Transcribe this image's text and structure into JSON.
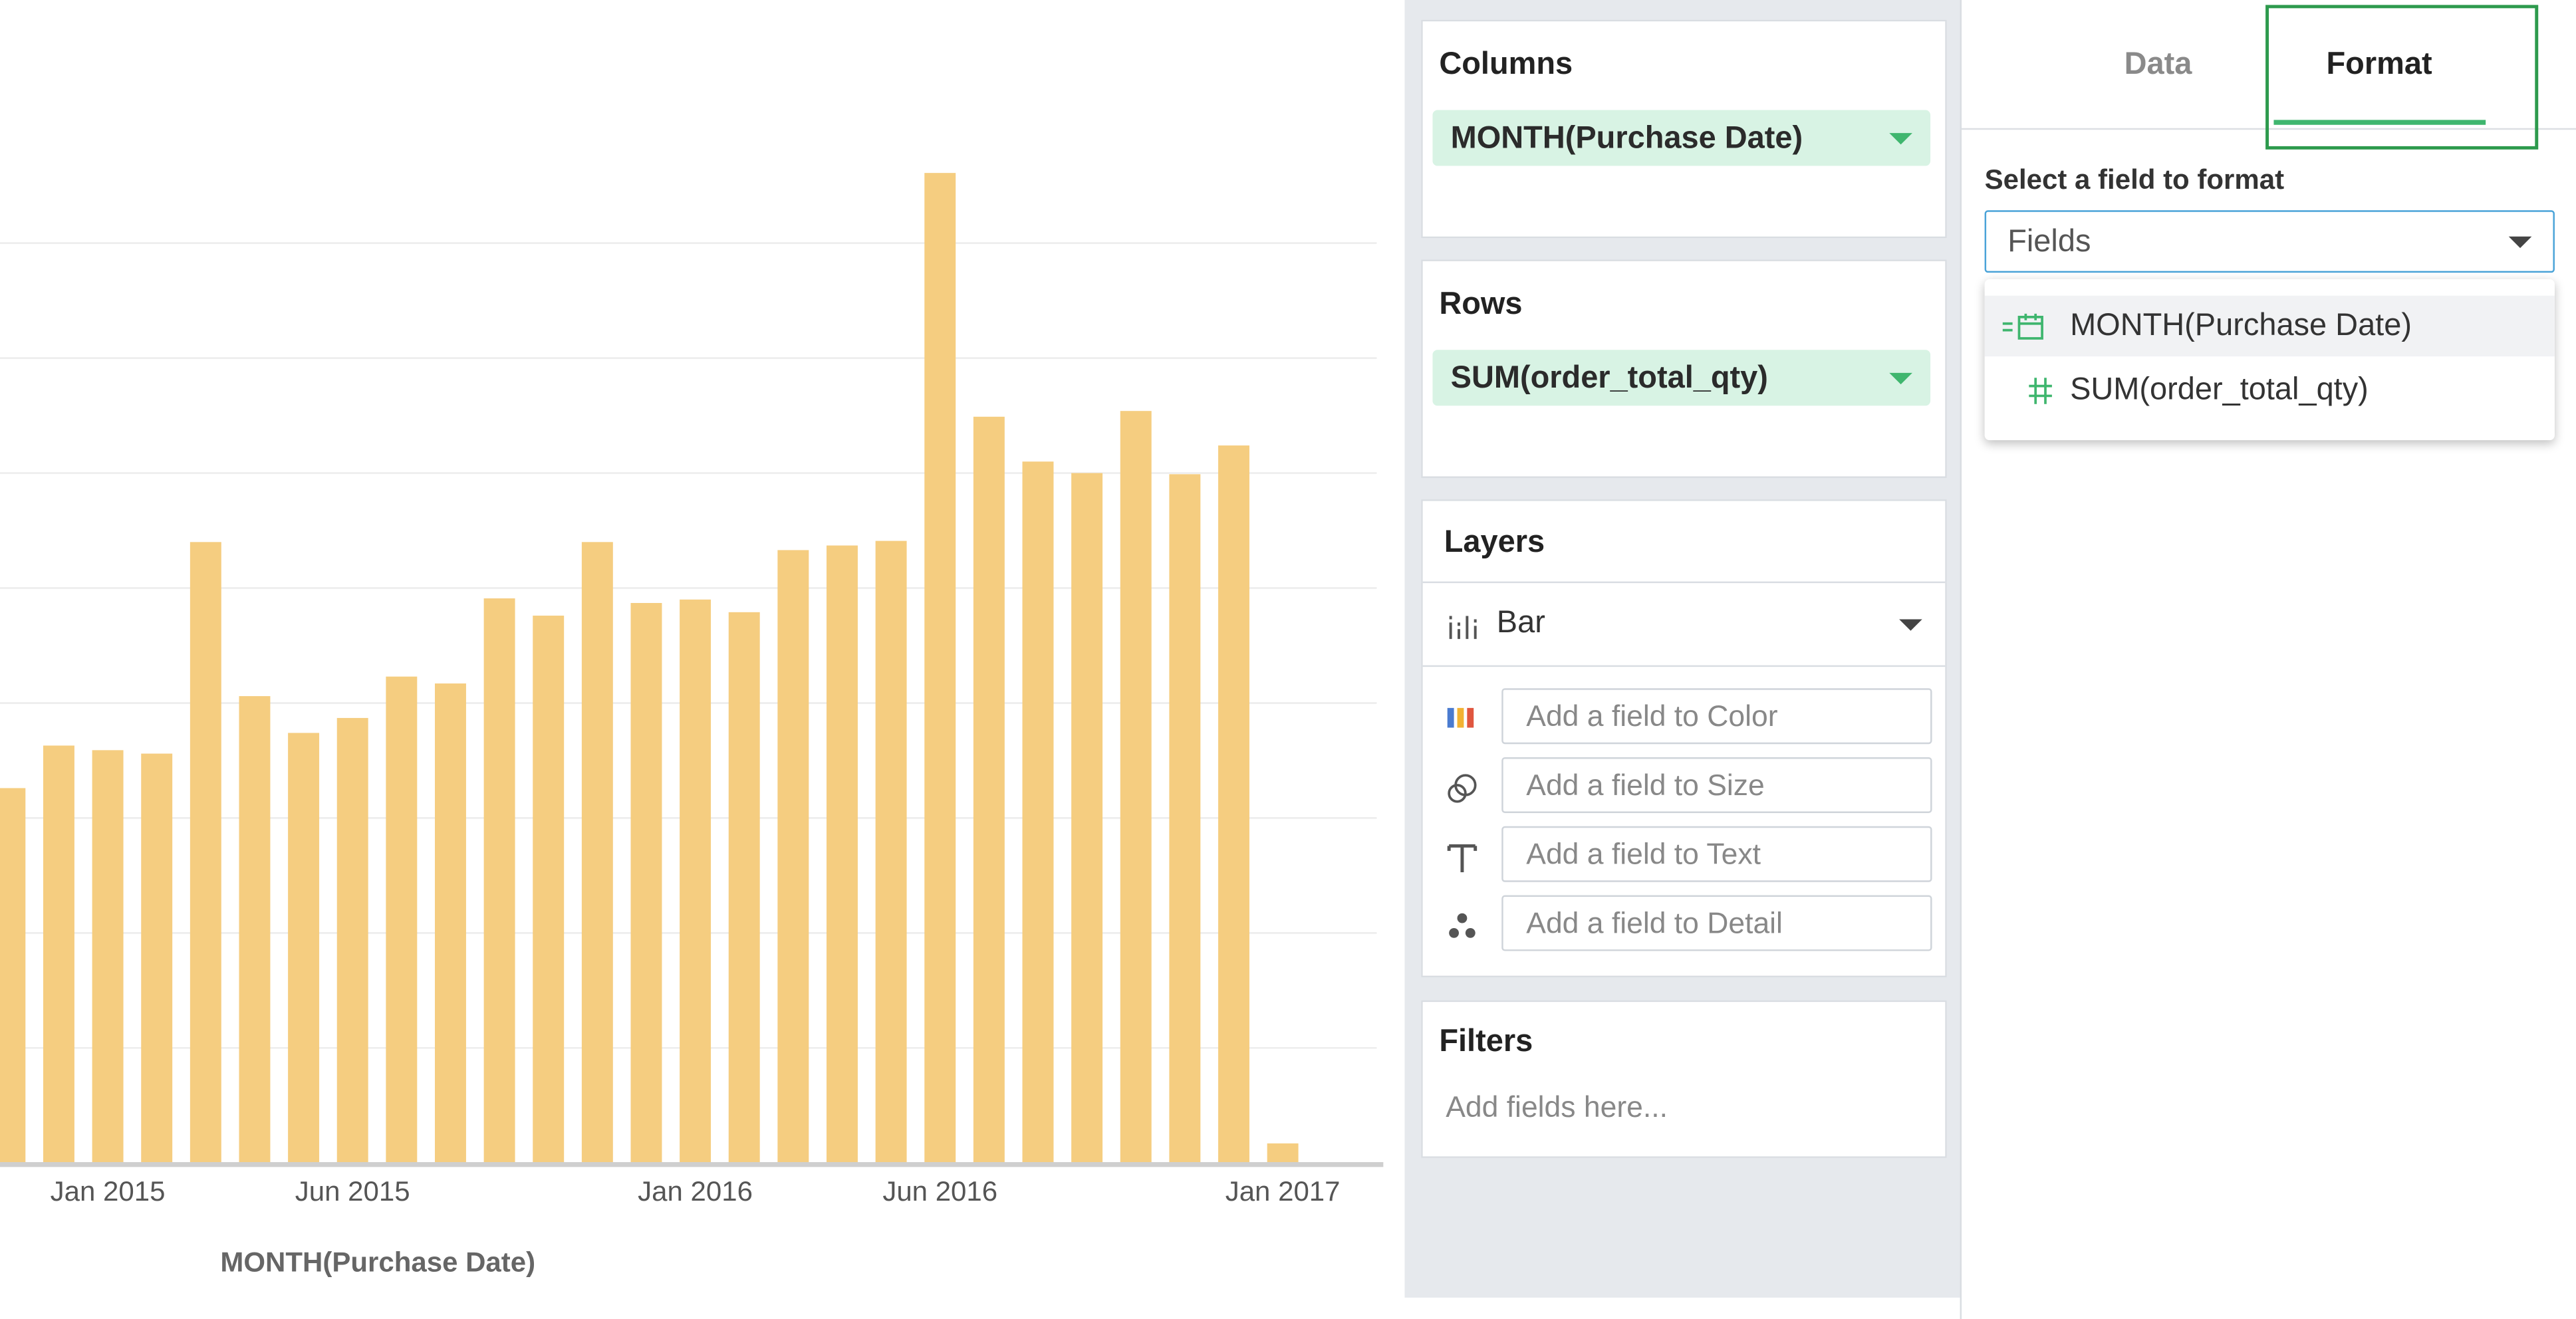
{
  "chart_data": {
    "type": "bar",
    "x_label": "MONTH(Purchase Date)",
    "categories": [
      null,
      null,
      "Jan 2015",
      null,
      null,
      null,
      null,
      "Jun 2015",
      null,
      null,
      null,
      null,
      null,
      null,
      "Jan 2016",
      null,
      null,
      null,
      null,
      "Jun 2016",
      null,
      null,
      null,
      null,
      null,
      null,
      "Jan 2017"
    ],
    "values": [
      3.26,
      3.63,
      3.59,
      3.56,
      5.4,
      4.06,
      3.74,
      3.87,
      4.23,
      4.17,
      4.91,
      4.76,
      5.4,
      4.87,
      4.9,
      4.79,
      5.33,
      5.37,
      5.41,
      8.61,
      6.49,
      6.1,
      6.0,
      6.54,
      5.99,
      6.24,
      0.17
    ],
    "color": "#f5cd80",
    "ylim": [
      0,
      10
    ],
    "gridlines": [
      1,
      2,
      3,
      4,
      5,
      6,
      7,
      8
    ],
    "grid": true
  },
  "shelves": {
    "columns": {
      "title": "Columns",
      "pill": "MONTH(Purchase Date)"
    },
    "rows": {
      "title": "Rows",
      "pill": "SUM(order_total_qty)"
    },
    "layers": {
      "title": "Layers",
      "mark": "Bar",
      "wells": [
        "Add a field to Color",
        "Add a field to Size",
        "Add a field to Text",
        "Add a field to Detail"
      ]
    },
    "filters": {
      "title": "Filters",
      "placeholder": "Add fields here..."
    }
  },
  "format_panel": {
    "tabs": [
      "Data",
      "Format"
    ],
    "label": "Select a field to format",
    "select": "Fields",
    "options": [
      "MONTH(Purchase Date)",
      "SUM(order_total_qty)"
    ]
  }
}
